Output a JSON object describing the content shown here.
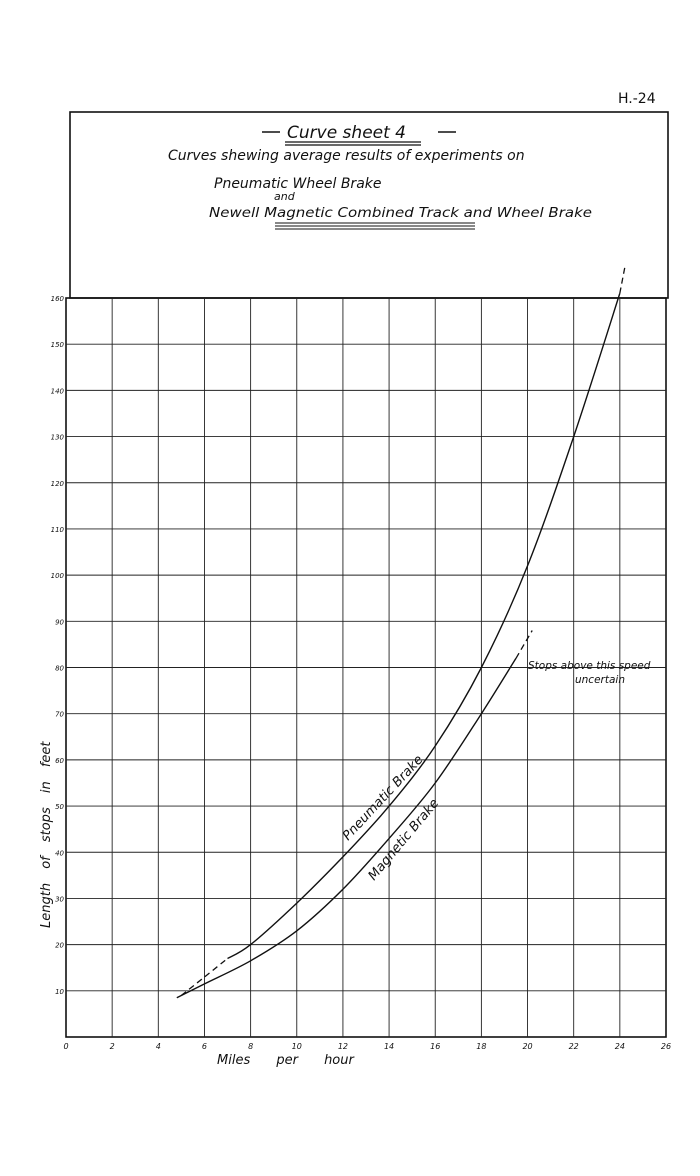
{
  "page_number": "H.-24",
  "header": {
    "title": "Curve sheet 4",
    "subtitle": "Curves shewing average results of experiments on",
    "line1": "Pneumatic Wheel Brake",
    "line2": "and",
    "line3": "Newell Magnetic Combined Track and Wheel Brake"
  },
  "chart_data": {
    "type": "line",
    "title": "Curve sheet 4",
    "xlabel": "Miles per hour",
    "ylabel": "Length of stops in feet",
    "xlim": [
      0,
      26
    ],
    "ylim": [
      0,
      160
    ],
    "x_ticks": [
      "0",
      "2",
      "4",
      "6",
      "8",
      "10",
      "12",
      "14",
      "16",
      "18",
      "20",
      "22",
      "24",
      "26"
    ],
    "y_ticks": [
      "10",
      "20",
      "30",
      "40",
      "50",
      "60",
      "70",
      "80",
      "90",
      "100",
      "110",
      "120",
      "130",
      "140",
      "150",
      "160"
    ],
    "grid": true,
    "series": [
      {
        "name": "Pneumatic Brake",
        "x": [
          7,
          8,
          10,
          12,
          14,
          16,
          18,
          20,
          22,
          24
        ],
        "y": [
          17,
          20,
          29,
          39,
          50,
          63,
          80,
          102,
          130,
          161
        ],
        "dashed_x": [
          5,
          6,
          7
        ],
        "dashed_y": [
          9,
          13,
          17
        ]
      },
      {
        "name": "Magnetic Brake",
        "x": [
          4.8,
          6,
          8,
          10,
          12,
          14,
          16,
          18,
          19.5
        ],
        "y": [
          8.5,
          11.5,
          16.5,
          23,
          32,
          43,
          55,
          70,
          82
        ],
        "dashed_x": [
          19.5,
          20.2
        ],
        "dashed_y": [
          82,
          88
        ]
      }
    ],
    "annotations": [
      "Stops above this speed",
      "uncertain"
    ]
  }
}
